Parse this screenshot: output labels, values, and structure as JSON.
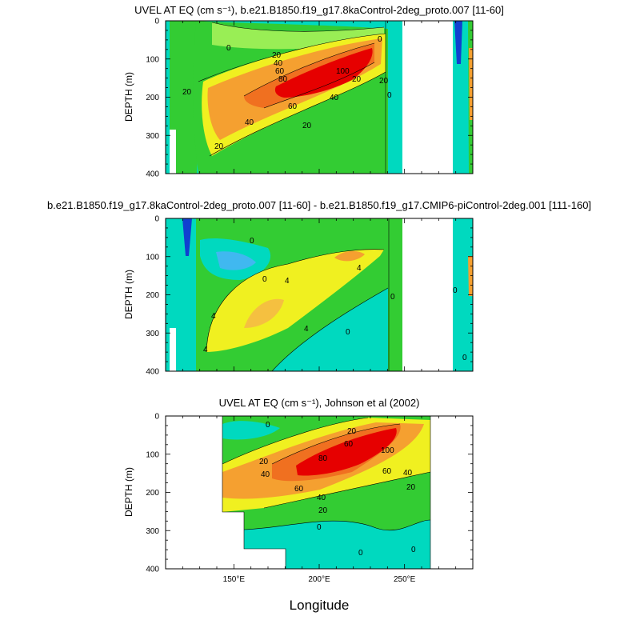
{
  "chart_data": [
    {
      "type": "contour",
      "title": "UVEL AT EQ (cm s⁻¹), b.e21.B1850.f19_g17.8kaControl-2deg_proto.007 [11-60]",
      "xlabel": "",
      "ylabel": "DEPTH (m)",
      "xlim": [
        110,
        290
      ],
      "ylim": [
        400,
        0
      ],
      "yticks": [
        "0",
        "100",
        "200",
        "300",
        "400"
      ],
      "contour_labels": [
        "0",
        "20",
        "40",
        "60",
        "80",
        "100",
        "20",
        "40",
        "60",
        "20",
        "0",
        "20",
        "20",
        "40",
        "0",
        "20"
      ],
      "masked_longitudes": [
        [
          248,
          278
        ]
      ]
    },
    {
      "type": "contour",
      "title": "b.e21.B1850.f19_g17.8kaControl-2deg_proto.007 [11-60] - b.e21.B1850.f19_g17.CMIP6-piControl-2deg.001 [111-160]",
      "xlabel": "",
      "ylabel": "DEPTH (m)",
      "xlim": [
        110,
        290
      ],
      "ylim": [
        400,
        0
      ],
      "yticks": [
        "0",
        "100",
        "200",
        "300",
        "400"
      ],
      "contour_labels": [
        "0",
        "0",
        "4",
        "4",
        "4",
        "4",
        "0",
        "0",
        "4",
        "0",
        "0"
      ],
      "masked_longitudes": [
        [
          248,
          278
        ]
      ]
    },
    {
      "type": "contour",
      "title": "UVEL AT EQ (cm s⁻¹), Johnson et al (2002)",
      "xlabel": "Longitude",
      "ylabel": "DEPTH (m)",
      "xlim": [
        110,
        290
      ],
      "ylim": [
        400,
        0
      ],
      "xticks": [
        "150°E",
        "200°E",
        "250°E"
      ],
      "yticks": [
        "0",
        "100",
        "200",
        "300",
        "400"
      ],
      "contour_labels": [
        "0",
        "20",
        "20",
        "40",
        "60",
        "80",
        "100",
        "60",
        "40",
        "20",
        "60",
        "40",
        "20",
        "0",
        "0",
        "0"
      ],
      "data_longitude_range": [
        143,
        265
      ]
    }
  ]
}
